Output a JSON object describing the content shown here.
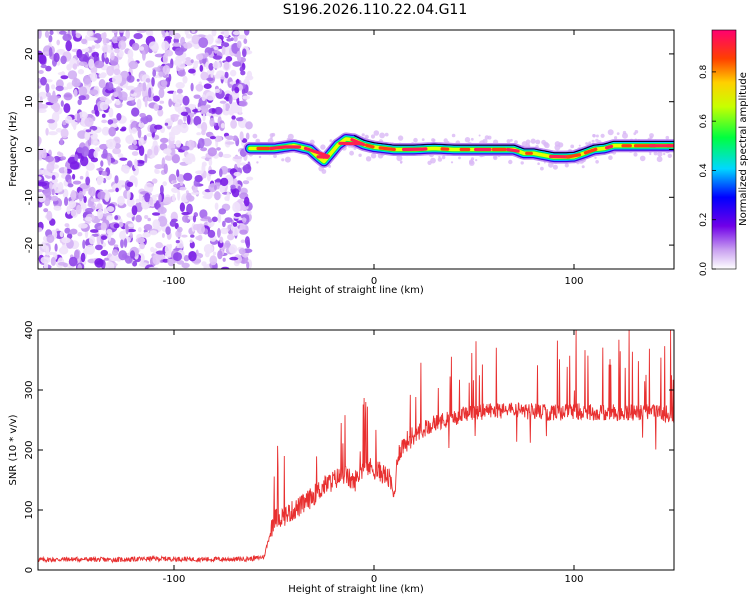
{
  "title": "S196.2026.110.22.04.G11",
  "chart_data": [
    {
      "type": "heatmap",
      "xlabel": "Height of straight line (km)",
      "ylabel": "Frequency (Hz)",
      "xlim": [
        -168,
        150
      ],
      "ylim": [
        -25,
        25
      ],
      "xticks": [
        -100,
        0,
        100
      ],
      "yticks": [
        -20,
        -10,
        0,
        10,
        20
      ],
      "colorbar": {
        "label": "Normalized spectral amplitude",
        "range": [
          0,
          0.97
        ],
        "ticks": [
          "0.0",
          "0.2",
          "0.4",
          "0.6",
          "0.8"
        ],
        "tick_values": [
          0.0,
          0.2,
          0.4,
          0.6,
          0.8
        ]
      },
      "noise_region_x": [
        -168,
        -62
      ],
      "ridge": {
        "x": [
          -62,
          -50,
          -40,
          -32,
          -28,
          -25,
          -22,
          -18,
          -14,
          -10,
          -5,
          0,
          10,
          20,
          30,
          40,
          50,
          60,
          70,
          75,
          80,
          85,
          90,
          95,
          100,
          105,
          110,
          115,
          120,
          130,
          140,
          150
        ],
        "frequency": [
          0.2,
          0.2,
          0.8,
          0.0,
          -1.5,
          -2.5,
          -1.0,
          1.0,
          2.2,
          2.0,
          1.0,
          0.5,
          0.0,
          0.0,
          0.2,
          0.0,
          0.0,
          0.0,
          0.0,
          -0.8,
          -0.8,
          -1.2,
          -1.6,
          -1.6,
          -1.5,
          -0.8,
          0.0,
          0.2,
          0.8,
          0.8,
          0.8,
          0.8
        ]
      }
    },
    {
      "type": "line",
      "xlabel": "Height of straight line (km)",
      "ylabel": "SNR (10 * v/v)",
      "xlim": [
        -168,
        150
      ],
      "ylim": [
        0,
        400
      ],
      "xticks": [
        -100,
        0,
        100
      ],
      "yticks": [
        0,
        100,
        200,
        300,
        400
      ],
      "color": "#e83030",
      "series": [
        {
          "name": "SNR",
          "x": [
            -168,
            -150,
            -130,
            -110,
            -90,
            -70,
            -60,
            -55,
            -52,
            -50,
            -45,
            -40,
            -35,
            -30,
            -25,
            -20,
            -15,
            -10,
            -5,
            0,
            5,
            8,
            10,
            12,
            15,
            20,
            25,
            30,
            40,
            50,
            60,
            70,
            80,
            90,
            100,
            110,
            120,
            130,
            140,
            150
          ],
          "values": [
            17,
            18,
            17,
            19,
            18,
            18,
            19,
            22,
            60,
            85,
            90,
            100,
            110,
            125,
            140,
            150,
            160,
            145,
            175,
            168,
            160,
            150,
            120,
            195,
            210,
            225,
            235,
            245,
            255,
            262,
            265,
            266,
            264,
            262,
            265,
            263,
            262,
            263,
            262,
            260
          ]
        }
      ]
    }
  ]
}
